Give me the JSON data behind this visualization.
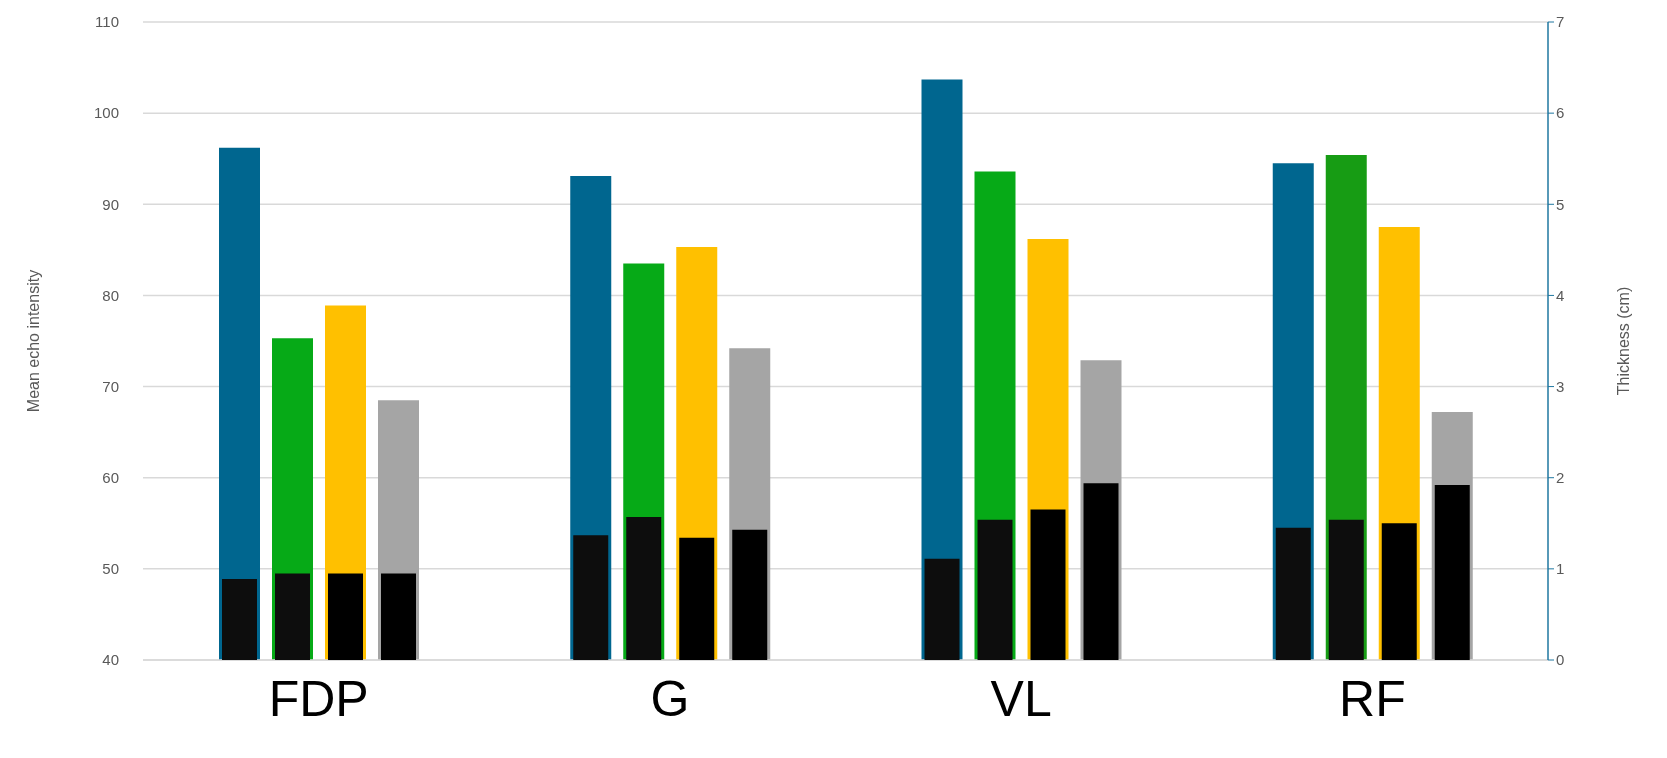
{
  "chart_data": {
    "type": "bar",
    "xlabel": null,
    "ylabel": "Mean echo intensity",
    "y2label": "Thickness (cm)",
    "categories": [
      "FDP",
      "G",
      "VL",
      "RF"
    ],
    "series": [
      {
        "color": "#00668f",
        "values": [
          96.2,
          93.1,
          103.7,
          94.5
        ]
      },
      {
        "color": "#06aa17",
        "colors": [
          "#06aa17",
          "#06aa17",
          "#06aa17",
          "#179c14"
        ],
        "values": [
          75.3,
          83.5,
          93.6,
          95.4
        ]
      },
      {
        "color": "#ffc000",
        "values": [
          78.9,
          85.3,
          86.2,
          87.5
        ]
      },
      {
        "color": "#a5a5a5",
        "values": [
          68.5,
          74.2,
          72.9,
          67.2
        ]
      },
      {
        "color": "#0d0d0d",
        "axis": "y2",
        "values": [
          0.89,
          1.37,
          1.11,
          1.45
        ]
      },
      {
        "color": "#0d0d0d",
        "axis": "y2",
        "values": [
          0.95,
          1.57,
          1.54,
          1.54
        ]
      },
      {
        "color": "#000000",
        "axis": "y2",
        "values": [
          0.95,
          1.34,
          1.65,
          1.5
        ]
      },
      {
        "color": "#000000",
        "axis": "y2",
        "values": [
          0.95,
          1.43,
          1.94,
          1.92
        ]
      }
    ],
    "ylim": [
      40,
      110
    ],
    "yticks": [
      40,
      50,
      60,
      70,
      80,
      90,
      100,
      110
    ],
    "y2lim": [
      0,
      7
    ],
    "y2ticks": [
      0,
      1,
      2,
      3,
      4,
      5,
      6,
      7
    ],
    "grid": "y"
  }
}
